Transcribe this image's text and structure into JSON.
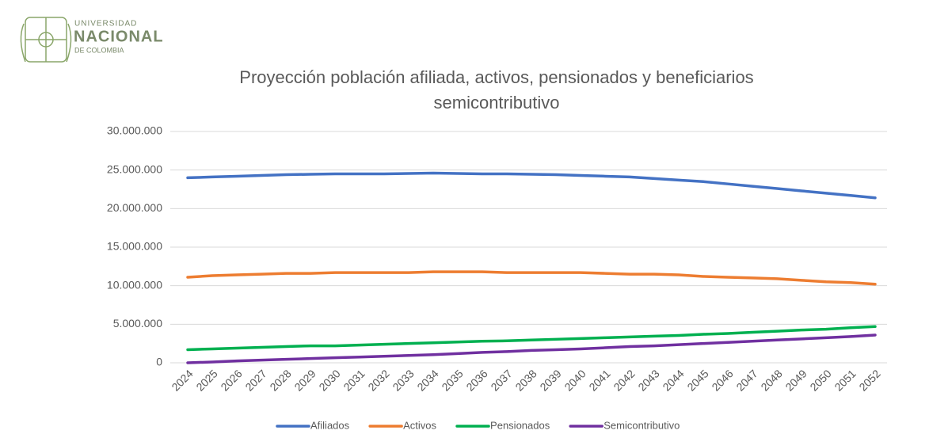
{
  "logo": {
    "line1": "UNIVERSIDAD",
    "line2": "NACIONAL",
    "line3": "DE COLOMBIA"
  },
  "chart_data": {
    "type": "line",
    "title": "Proyección población afiliada, activos, pensionados y beneficiarios semicontributivo",
    "categories": [
      "2024",
      "2025",
      "2026",
      "2027",
      "2028",
      "2029",
      "2030",
      "2031",
      "2032",
      "2033",
      "2034",
      "2035",
      "2036",
      "2037",
      "2038",
      "2039",
      "2040",
      "2041",
      "2042",
      "2043",
      "2044",
      "2045",
      "2046",
      "2047",
      "2048",
      "2049",
      "2050",
      "2051",
      "2052"
    ],
    "series": [
      {
        "name": "Afiliados",
        "color": "#4472c4",
        "values": [
          24000000,
          24100000,
          24200000,
          24300000,
          24400000,
          24450000,
          24500000,
          24500000,
          24500000,
          24550000,
          24600000,
          24550000,
          24500000,
          24500000,
          24450000,
          24400000,
          24300000,
          24200000,
          24100000,
          23900000,
          23700000,
          23500000,
          23200000,
          22900000,
          22600000,
          22300000,
          22000000,
          21700000,
          21400000
        ]
      },
      {
        "name": "Activos",
        "color": "#ed7d31",
        "values": [
          11100000,
          11300000,
          11400000,
          11500000,
          11600000,
          11600000,
          11700000,
          11700000,
          11700000,
          11700000,
          11800000,
          11800000,
          11800000,
          11700000,
          11700000,
          11700000,
          11700000,
          11600000,
          11500000,
          11500000,
          11400000,
          11200000,
          11100000,
          11000000,
          10900000,
          10700000,
          10500000,
          10400000,
          10200000
        ]
      },
      {
        "name": "Pensionados",
        "color": "#00b050",
        "values": [
          1700000,
          1800000,
          1900000,
          2000000,
          2100000,
          2200000,
          2200000,
          2300000,
          2400000,
          2500000,
          2600000,
          2700000,
          2800000,
          2850000,
          2950000,
          3050000,
          3150000,
          3250000,
          3350000,
          3450000,
          3550000,
          3700000,
          3800000,
          3950000,
          4100000,
          4250000,
          4350000,
          4550000,
          4700000
        ]
      },
      {
        "name": "Semicontributivo",
        "color": "#7030a0",
        "values": [
          0,
          100000,
          250000,
          350000,
          450000,
          550000,
          650000,
          750000,
          850000,
          950000,
          1050000,
          1200000,
          1350000,
          1450000,
          1600000,
          1700000,
          1800000,
          1950000,
          2100000,
          2200000,
          2350000,
          2500000,
          2650000,
          2800000,
          2950000,
          3100000,
          3250000,
          3400000,
          3600000
        ]
      }
    ],
    "ylim": [
      0,
      30000000
    ],
    "yticks": [
      0,
      {
        "value": 5000000,
        "label": "5.000.000"
      },
      {
        "value": 10000000,
        "label": "10.000.000"
      },
      {
        "value": 15000000,
        "label": "15.000.000"
      },
      {
        "value": 20000000,
        "label": "20.000.000"
      },
      {
        "value": 25000000,
        "label": "25.000.000"
      },
      {
        "value": 30000000,
        "label": "30.000.000"
      }
    ],
    "grid": true,
    "legend": "bottom"
  }
}
